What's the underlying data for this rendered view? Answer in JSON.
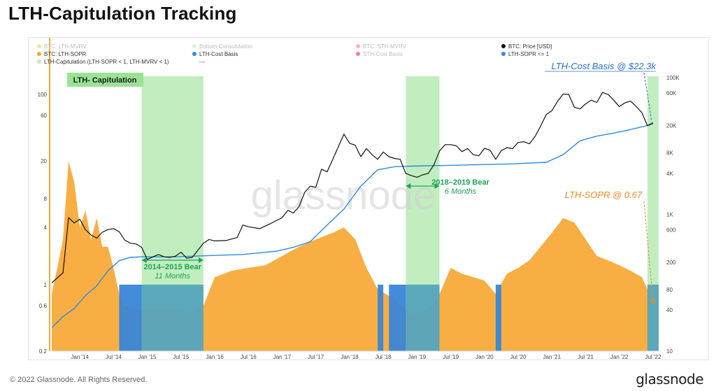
{
  "page": {
    "title": "LTH-Capitulation Tracking",
    "footer_copyright": "© 2022 Glassnode. All Rights Reserved.",
    "footer_brand": "glassnode",
    "watermark": "glassnode"
  },
  "chart_data": {
    "type": "line",
    "title": "LTH-Capitulation Tracking",
    "colors": {
      "lth_sopr": "#f7a733",
      "lth_sopr_below_1": "#3a86d8",
      "capitulation": "#8fe08a",
      "price": "#111111",
      "cost_basis": "#2b8be0",
      "annotation_green": "#1aa55a",
      "annotation_orange": "#f08a1c",
      "annotation_blue": "#2b6fd0"
    },
    "legend": [
      {
        "label": "BTC: LTH-MVRV",
        "color": "#f7c46a",
        "muted": true
      },
      {
        "label": "BTC: LTH-SOPR",
        "color": "#f7a733",
        "muted": false
      },
      {
        "label": "LTH-Capitulation (LTH-SOPR < 1, LTH-MVRV < 1)",
        "color": "#b9efb3",
        "muted": false
      },
      {
        "label": "Bottom Consolidation",
        "color": "#b9efb3",
        "muted": true
      },
      {
        "label": "LTH-Cost Basis",
        "color": "#2b8be0",
        "muted": false
      },
      {
        "label": "---",
        "color": "none",
        "muted": false
      },
      {
        "label": "BTC: STH-MVRV",
        "color": "#f28080",
        "muted": true
      },
      {
        "label": "STH-Cost Basis",
        "color": "#e02020",
        "muted": true
      },
      {
        "label": "BTC: Price [USD]",
        "color": "#111111",
        "muted": false
      },
      {
        "label": "LTH-SOPR <= 1",
        "color": "#3a86d8",
        "muted": false
      }
    ],
    "legend_placement": "top",
    "x_axis": {
      "range": [
        "2013-08",
        "2022-08"
      ],
      "ticks": [
        "Jan '14",
        "Jul '14",
        "Jan '15",
        "Jul '15",
        "Jan '16",
        "Jul '16",
        "Jan '17",
        "Jul '17",
        "Jan '18",
        "Jul '18",
        "Jan '19",
        "Jul '19",
        "Jan '20",
        "Jul '20",
        "Jan '21",
        "Jul '21",
        "Jan '22",
        "Jul '22"
      ]
    },
    "y_left": {
      "scale": "log",
      "range": [
        0.2,
        200
      ],
      "ticks": [
        "100",
        "60",
        "20",
        "8",
        "4",
        "1",
        "0.6",
        "0.2"
      ]
    },
    "y_right": {
      "scale": "log",
      "range": [
        10,
        150000
      ],
      "ticks": [
        "100K",
        "60K",
        "20K",
        "8K",
        "4K",
        "1K",
        "600",
        "200",
        "80",
        "40",
        "10"
      ]
    },
    "capitulation_box_label": "LTH- Capitulation",
    "annotations": [
      {
        "title": "2014–2015 Bear",
        "duration": "11 Months"
      },
      {
        "title": "2018–2019 Bear",
        "duration": "6 Months"
      },
      {
        "label": "LTH-Cost Basis @ $22.3k"
      },
      {
        "label": "LTH-SOPR @ 0.67"
      }
    ],
    "capitulation_zones": [
      {
        "start": "2014-12",
        "end": "2015-11"
      },
      {
        "start": "2018-11",
        "end": "2019-05"
      },
      {
        "start": "2022-06",
        "end": "2022-08"
      }
    ],
    "sopr_below_1_zones": [
      {
        "start": "2014-08",
        "end": "2015-11"
      },
      {
        "start": "2018-06",
        "end": "2018-07"
      },
      {
        "start": "2018-08",
        "end": "2019-05"
      },
      {
        "start": "2020-03",
        "end": "2020-04"
      },
      {
        "start": "2022-06",
        "end": "2022-08"
      }
    ],
    "series": [
      {
        "name": "BTC: Price [USD]",
        "axis": "right",
        "x": [
          "2013-08",
          "2013-10",
          "2013-11",
          "2013-12",
          "2014-01",
          "2014-02",
          "2014-03",
          "2014-04",
          "2014-05",
          "2014-06",
          "2014-07",
          "2014-08",
          "2014-09",
          "2014-10",
          "2014-11",
          "2014-12",
          "2015-01",
          "2015-02",
          "2015-03",
          "2015-04",
          "2015-05",
          "2015-06",
          "2015-07",
          "2015-08",
          "2015-09",
          "2015-10",
          "2015-11",
          "2015-12",
          "2016-01",
          "2016-03",
          "2016-05",
          "2016-06",
          "2016-07",
          "2016-09",
          "2016-11",
          "2017-01",
          "2017-02",
          "2017-03",
          "2017-04",
          "2017-05",
          "2017-06",
          "2017-07",
          "2017-08",
          "2017-09",
          "2017-10",
          "2017-11",
          "2017-12",
          "2018-01",
          "2018-02",
          "2018-03",
          "2018-04",
          "2018-05",
          "2018-06",
          "2018-07",
          "2018-08",
          "2018-09",
          "2018-10",
          "2018-11",
          "2018-12",
          "2019-01",
          "2019-02",
          "2019-03",
          "2019-04",
          "2019-05",
          "2019-06",
          "2019-07",
          "2019-08",
          "2019-09",
          "2019-10",
          "2019-11",
          "2019-12",
          "2020-01",
          "2020-02",
          "2020-03",
          "2020-04",
          "2020-05",
          "2020-06",
          "2020-07",
          "2020-08",
          "2020-09",
          "2020-10",
          "2020-11",
          "2020-12",
          "2021-01",
          "2021-02",
          "2021-03",
          "2021-04",
          "2021-05",
          "2021-06",
          "2021-07",
          "2021-08",
          "2021-09",
          "2021-10",
          "2021-11",
          "2021-12",
          "2022-01",
          "2022-02",
          "2022-03",
          "2022-04",
          "2022-05",
          "2022-06",
          "2022-07"
        ],
        "values": [
          100,
          140,
          900,
          750,
          850,
          600,
          500,
          450,
          550,
          600,
          620,
          560,
          420,
          380,
          370,
          330,
          220,
          240,
          260,
          240,
          235,
          245,
          280,
          230,
          235,
          300,
          380,
          430,
          410,
          415,
          460,
          700,
          660,
          620,
          740,
          900,
          1150,
          1050,
          1300,
          2100,
          2600,
          2500,
          4600,
          4200,
          6400,
          9800,
          15000,
          11000,
          10300,
          7000,
          9200,
          7500,
          6400,
          8200,
          7000,
          6600,
          6400,
          4000,
          3700,
          3500,
          3800,
          4000,
          5300,
          8500,
          10500,
          10500,
          10100,
          8300,
          9200,
          7500,
          7200,
          9300,
          8700,
          6400,
          8600,
          9500,
          9200,
          11300,
          11600,
          10800,
          13800,
          19700,
          29000,
          33000,
          45000,
          58000,
          57000,
          37000,
          35000,
          41500,
          47000,
          43500,
          61000,
          57000,
          47000,
          38000,
          43000,
          45500,
          38000,
          31000,
          19900,
          21500
        ]
      },
      {
        "name": "LTH-Cost Basis",
        "axis": "right",
        "x": [
          "2013-08",
          "2013-10",
          "2013-12",
          "2014-02",
          "2014-04",
          "2014-06",
          "2014-08",
          "2014-10",
          "2014-12",
          "2015-06",
          "2015-12",
          "2016-06",
          "2016-12",
          "2017-03",
          "2017-06",
          "2017-09",
          "2017-12",
          "2018-03",
          "2018-06",
          "2018-09",
          "2018-12",
          "2019-06",
          "2019-12",
          "2020-06",
          "2020-12",
          "2021-03",
          "2021-06",
          "2021-09",
          "2021-12",
          "2022-03",
          "2022-06",
          "2022-07"
        ],
        "values": [
          22,
          32,
          42,
          65,
          90,
          150,
          210,
          235,
          240,
          240,
          250,
          260,
          290,
          330,
          400,
          700,
          1200,
          2600,
          4500,
          5000,
          5100,
          5200,
          5350,
          5500,
          5800,
          7500,
          12000,
          14000,
          15500,
          17500,
          20000,
          22300
        ]
      },
      {
        "name": "BTC: LTH-SOPR",
        "axis": "left",
        "x": [
          "2013-08",
          "2013-09",
          "2013-10",
          "2013-11",
          "2013-12",
          "2014-01",
          "2014-02",
          "2014-03",
          "2014-04",
          "2014-05",
          "2014-06",
          "2014-07",
          "2014-08",
          "2014-09",
          "2014-10",
          "2014-12",
          "2015-03",
          "2015-06",
          "2015-09",
          "2015-11",
          "2016-01",
          "2016-04",
          "2016-07",
          "2016-10",
          "2017-01",
          "2017-04",
          "2017-07",
          "2017-10",
          "2017-12",
          "2018-02",
          "2018-04",
          "2018-06",
          "2018-09",
          "2018-12",
          "2019-03",
          "2019-05",
          "2019-07",
          "2019-09",
          "2019-11",
          "2020-01",
          "2020-03",
          "2020-05",
          "2020-07",
          "2020-09",
          "2020-11",
          "2021-01",
          "2021-03",
          "2021-05",
          "2021-07",
          "2021-09",
          "2021-11",
          "2022-01",
          "2022-03",
          "2022-05",
          "2022-06",
          "2022-07"
        ],
        "values": [
          0.8,
          1.5,
          3,
          20,
          12,
          4,
          6,
          3,
          5,
          2.5,
          2.5,
          1.5,
          0.8,
          0.6,
          0.6,
          0.55,
          0.55,
          0.55,
          0.5,
          0.6,
          1.2,
          1.4,
          1.5,
          1.6,
          2,
          2.5,
          3,
          3.5,
          4,
          3,
          1.5,
          0.9,
          0.7,
          0.5,
          0.55,
          0.8,
          1.5,
          1.3,
          1.2,
          1.1,
          0.8,
          1.3,
          1.5,
          1.8,
          2.5,
          3.5,
          5,
          4.5,
          3,
          2,
          1.8,
          1.6,
          1.4,
          1.2,
          0.9,
          0.67
        ]
      }
    ]
  }
}
